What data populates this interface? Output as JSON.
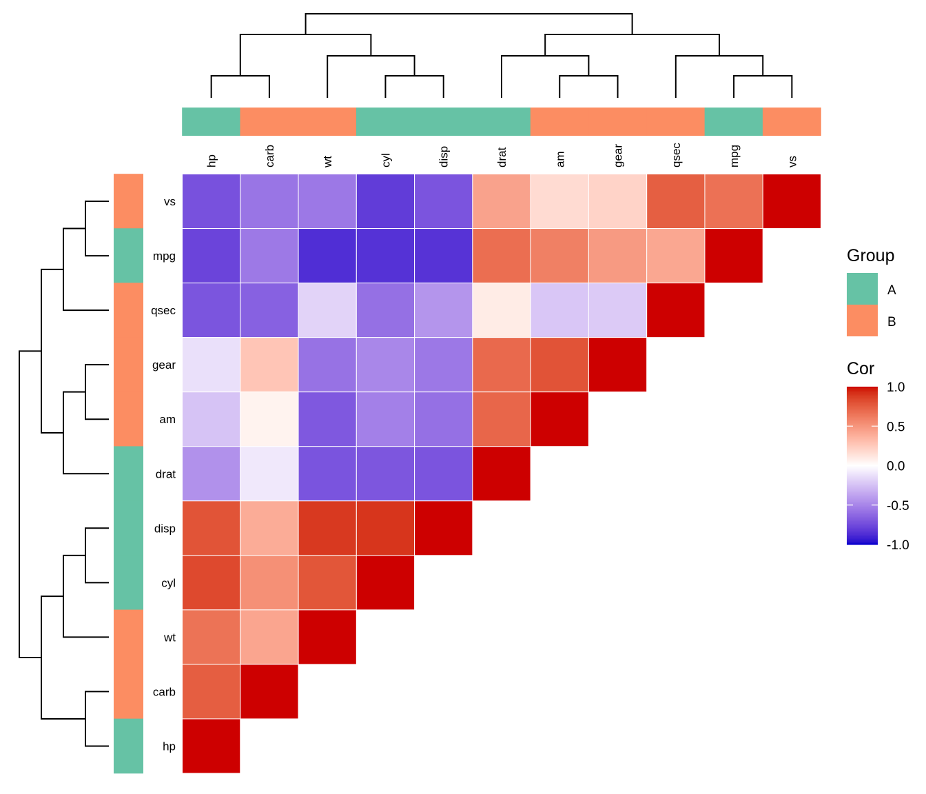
{
  "chart_data": {
    "type": "heatmap",
    "title": "",
    "variables": [
      "hp",
      "carb",
      "wt",
      "cyl",
      "disp",
      "drat",
      "am",
      "gear",
      "qsec",
      "mpg",
      "vs"
    ],
    "column_order": [
      "hp",
      "carb",
      "wt",
      "cyl",
      "disp",
      "drat",
      "am",
      "gear",
      "qsec",
      "mpg",
      "vs"
    ],
    "row_order": [
      "vs",
      "mpg",
      "qsec",
      "gear",
      "am",
      "drat",
      "disp",
      "cyl",
      "wt",
      "carb",
      "hp"
    ],
    "layout": "lower-triangle",
    "correlations": {
      "vs": {
        "hp": -0.723,
        "carb": -0.57,
        "wt": -0.555,
        "cyl": -0.811,
        "disp": -0.71,
        "drat": 0.44,
        "am": 0.168,
        "gear": 0.206,
        "qsec": 0.745,
        "mpg": 0.664,
        "vs": 1.0
      },
      "mpg": {
        "hp": -0.776,
        "carb": -0.551,
        "wt": -0.868,
        "cyl": -0.852,
        "disp": -0.848,
        "drat": 0.681,
        "am": 0.6,
        "gear": 0.48,
        "qsec": 0.419,
        "mpg": 1.0
      },
      "qsec": {
        "hp": -0.708,
        "carb": -0.656,
        "wt": -0.175,
        "cyl": -0.591,
        "disp": -0.434,
        "drat": 0.091,
        "am": -0.23,
        "gear": -0.213,
        "qsec": 1.0
      },
      "gear": {
        "hp": -0.126,
        "carb": 0.274,
        "wt": -0.583,
        "cyl": -0.493,
        "disp": -0.556,
        "drat": 0.7,
        "am": 0.794,
        "gear": 1.0
      },
      "am": {
        "hp": -0.243,
        "carb": 0.058,
        "wt": -0.692,
        "cyl": -0.523,
        "disp": -0.591,
        "drat": 0.713,
        "am": 1.0
      },
      "drat": {
        "hp": -0.449,
        "carb": -0.091,
        "wt": -0.712,
        "cyl": -0.7,
        "disp": -0.71,
        "drat": 1.0
      },
      "disp": {
        "hp": 0.791,
        "carb": 0.395,
        "wt": 0.888,
        "cyl": 0.902,
        "disp": 1.0
      },
      "cyl": {
        "hp": 0.832,
        "carb": 0.527,
        "wt": 0.782,
        "cyl": 1.0
      },
      "wt": {
        "hp": 0.659,
        "carb": 0.428,
        "wt": 1.0
      },
      "carb": {
        "hp": 0.75,
        "carb": 1.0
      },
      "hp": {
        "hp": 1.0
      }
    },
    "groups": {
      "hp": "A",
      "carb": "B",
      "wt": "B",
      "cyl": "A",
      "disp": "A",
      "drat": "A",
      "am": "B",
      "gear": "B",
      "qsec": "B",
      "mpg": "A",
      "vs": "B"
    },
    "column_dendrogram": [
      [
        [
          "hp",
          "carb"
        ],
        [
          "wt",
          [
            "cyl",
            "disp"
          ]
        ]
      ],
      [
        [
          "drat",
          [
            "am",
            "gear"
          ]
        ],
        [
          "qsec",
          [
            "mpg",
            "vs"
          ]
        ]
      ]
    ],
    "row_dendrogram": [
      [
        [
          "vs",
          "mpg"
        ],
        "qsec"
      ],
      [
        [
          "gear",
          "am"
        ],
        "drat"
      ]
    ],
    "row_dendrogram_full": [
      [
        [
          [
            "vs",
            "mpg"
          ],
          "qsec"
        ],
        [
          [
            "gear",
            "am"
          ],
          "drat"
        ]
      ],
      [
        [
          [
            "disp",
            "cyl"
          ],
          "wt"
        ],
        [
          "carb",
          "hp"
        ]
      ]
    ],
    "color_scale": {
      "name": "Cor",
      "min": -1.0,
      "mid": 0.0,
      "max": 1.0,
      "low_color": "#0000cd",
      "mid_color": "#ffffff",
      "high_color": "#cd0000",
      "ticks": [
        "1.0",
        "0.5",
        "0.0",
        "-0.5",
        "-1.0"
      ],
      "tick_values": [
        1.0,
        0.5,
        0.0,
        -0.5,
        -1.0
      ]
    },
    "legends": {
      "group": {
        "title": "Group",
        "entries": [
          {
            "label": "A",
            "color": "#66c2a5"
          },
          {
            "label": "B",
            "color": "#fc8d62"
          }
        ]
      },
      "cor": {
        "title": "Cor"
      }
    },
    "legend_position": "right"
  }
}
